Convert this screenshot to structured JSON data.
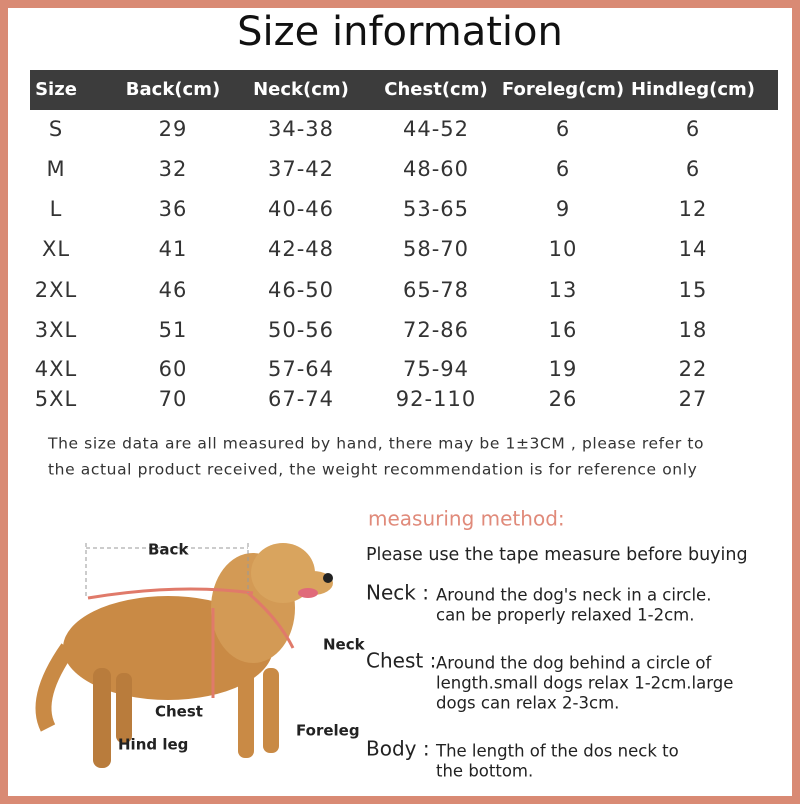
{
  "header": {
    "title": "Size information"
  },
  "table": {
    "columns": [
      "Size",
      "Back(cm)",
      "Neck(cm)",
      "Chest(cm)",
      "Foreleg(cm)",
      "Hindleg(cm)"
    ],
    "rows": [
      [
        "S",
        "29",
        "34-38",
        "44-52",
        "6",
        "6"
      ],
      [
        "M",
        "32",
        "37-42",
        "48-60",
        "6",
        "6"
      ],
      [
        "L",
        "36",
        "40-46",
        "53-65",
        "9",
        "12"
      ],
      [
        "XL",
        "41",
        "42-48",
        "58-70",
        "10",
        "14"
      ],
      [
        "2XL",
        "46",
        "46-50",
        "65-78",
        "13",
        "15"
      ],
      [
        "3XL",
        "51",
        "50-56",
        "72-86",
        "16",
        "18"
      ],
      [
        "4XL",
        "60",
        "57-64",
        "75-94",
        "19",
        "22"
      ],
      [
        "5XL",
        "70",
        "67-74",
        "92-110",
        "26",
        "27"
      ]
    ]
  },
  "note": [
    "The size data are all measured by hand, there may be 1±3CM , please refer to",
    "the actual product received, the weight recommendation is for reference only"
  ],
  "measuring": {
    "title": "measuring method:",
    "intro": "Please use the tape measure before buying",
    "items": [
      {
        "label": "Neck :",
        "lines": [
          "Around the dog's neck in a circle.",
          "can be properly relaxed 1-2cm."
        ]
      },
      {
        "label": "Chest :",
        "lines": [
          "Around the dog behind a circle of",
          "length.small dogs relax 1-2cm.large",
          "dogs can relax 2-3cm."
        ]
      },
      {
        "label": "Body :",
        "lines": [
          "The length of the dos neck to",
          "the bottom."
        ]
      }
    ]
  },
  "diagram": {
    "labels": [
      "Back",
      "Neck",
      "Chest",
      "Foreleg",
      "Hind leg"
    ]
  }
}
